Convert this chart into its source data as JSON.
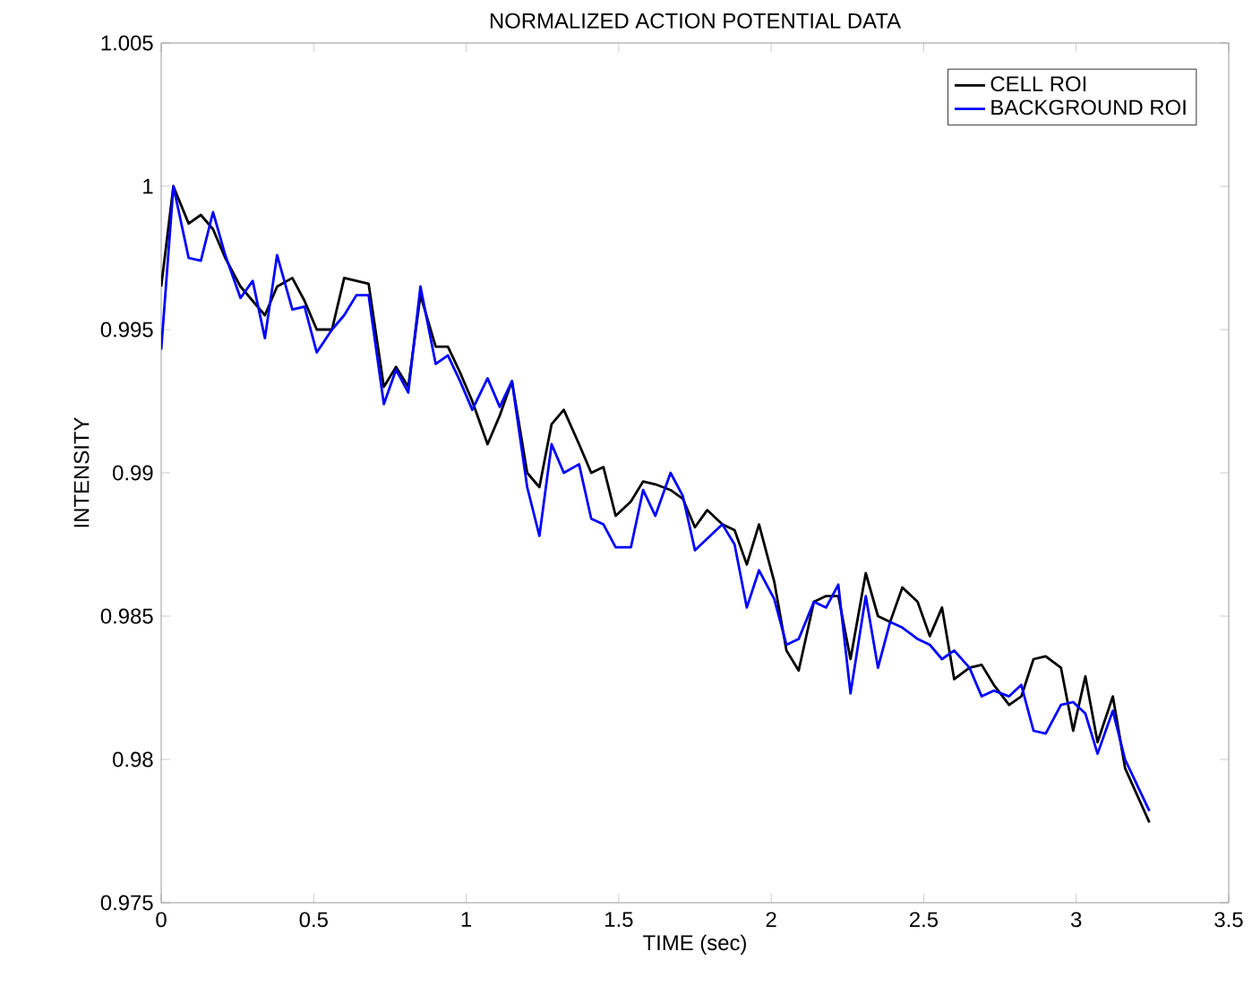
{
  "chart_data": {
    "type": "line",
    "title": "NORMALIZED ACTION POTENTIAL DATA",
    "xlabel": "TIME (sec)",
    "ylabel": "INTENSITY",
    "xlim": [
      0,
      3.5
    ],
    "ylim": [
      0.975,
      1.005
    ],
    "xticks": [
      0,
      0.5,
      1,
      1.5,
      2,
      2.5,
      3,
      3.5
    ],
    "yticks": [
      0.975,
      0.98,
      0.985,
      0.99,
      0.995,
      1,
      1.005
    ],
    "grid": false,
    "legend": "top right",
    "line_style": "solid",
    "marker": "none",
    "x": [
      0,
      0.04,
      0.09,
      0.13,
      0.17,
      0.21,
      0.26,
      0.3,
      0.34,
      0.38,
      0.43,
      0.47,
      0.51,
      0.56,
      0.6,
      0.64,
      0.68,
      0.73,
      0.77,
      0.81,
      0.85,
      0.9,
      0.94,
      0.98,
      1.02,
      1.07,
      1.11,
      1.15,
      1.2,
      1.24,
      1.28,
      1.32,
      1.37,
      1.41,
      1.45,
      1.49,
      1.54,
      1.58,
      1.62,
      1.67,
      1.71,
      1.75,
      1.79,
      1.84,
      1.88,
      1.92,
      1.96,
      2.01,
      2.05,
      2.09,
      2.14,
      2.18,
      2.22,
      2.26,
      2.31,
      2.35,
      2.39,
      2.43,
      2.48,
      2.52,
      2.56,
      2.6,
      2.65,
      2.69,
      2.73,
      2.78,
      2.82,
      2.86,
      2.9,
      2.95,
      2.99,
      3.03,
      3.07,
      3.12,
      3.16,
      3.24
    ],
    "series": [
      {
        "name": "CELL ROI",
        "color": "#000000",
        "values": [
          0.9965,
          1.0,
          0.9987,
          0.999,
          0.9985,
          0.9975,
          0.9965,
          0.996,
          0.9955,
          0.9965,
          0.9968,
          0.996,
          0.995,
          0.995,
          0.9968,
          0.9967,
          0.9966,
          0.993,
          0.9937,
          0.993,
          0.9962,
          0.9944,
          0.9944,
          0.9935,
          0.9925,
          0.991,
          0.992,
          0.9932,
          0.99,
          0.9895,
          0.9917,
          0.9922,
          0.991,
          0.99,
          0.9902,
          0.9885,
          0.989,
          0.9897,
          0.9896,
          0.9894,
          0.9891,
          0.9881,
          0.9887,
          0.9882,
          0.988,
          0.9868,
          0.9882,
          0.9862,
          0.9838,
          0.9831,
          0.9855,
          0.9857,
          0.9857,
          0.9835,
          0.9865,
          0.985,
          0.9848,
          0.986,
          0.9855,
          0.9843,
          0.9853,
          0.9828,
          0.9832,
          0.9833,
          0.9826,
          0.9819,
          0.9822,
          0.9835,
          0.9836,
          0.9832,
          0.981,
          0.9829,
          0.9806,
          0.9822,
          0.9797,
          0.9778
        ]
      },
      {
        "name": "BACKGROUND ROI",
        "color": "#0000ff",
        "values": [
          0.9943,
          1.0,
          0.9975,
          0.9974,
          0.9991,
          0.9976,
          0.9961,
          0.9967,
          0.9947,
          0.9976,
          0.9957,
          0.9958,
          0.9942,
          0.995,
          0.9955,
          0.9962,
          0.9962,
          0.9924,
          0.9936,
          0.9928,
          0.9965,
          0.9938,
          0.9941,
          0.9932,
          0.9922,
          0.9933,
          0.9923,
          0.9932,
          0.9895,
          0.9878,
          0.991,
          0.99,
          0.9903,
          0.9884,
          0.9882,
          0.9874,
          0.9874,
          0.9894,
          0.9885,
          0.99,
          0.9892,
          0.9873,
          0.9877,
          0.9882,
          0.9875,
          0.9853,
          0.9866,
          0.9856,
          0.984,
          0.9842,
          0.9855,
          0.9853,
          0.9861,
          0.9823,
          0.9857,
          0.9832,
          0.9848,
          0.9846,
          0.9842,
          0.984,
          0.9835,
          0.9838,
          0.9832,
          0.9822,
          0.9824,
          0.9822,
          0.9826,
          0.981,
          0.9809,
          0.9819,
          0.982,
          0.9816,
          0.9802,
          0.9817,
          0.98,
          0.9782
        ]
      }
    ]
  }
}
